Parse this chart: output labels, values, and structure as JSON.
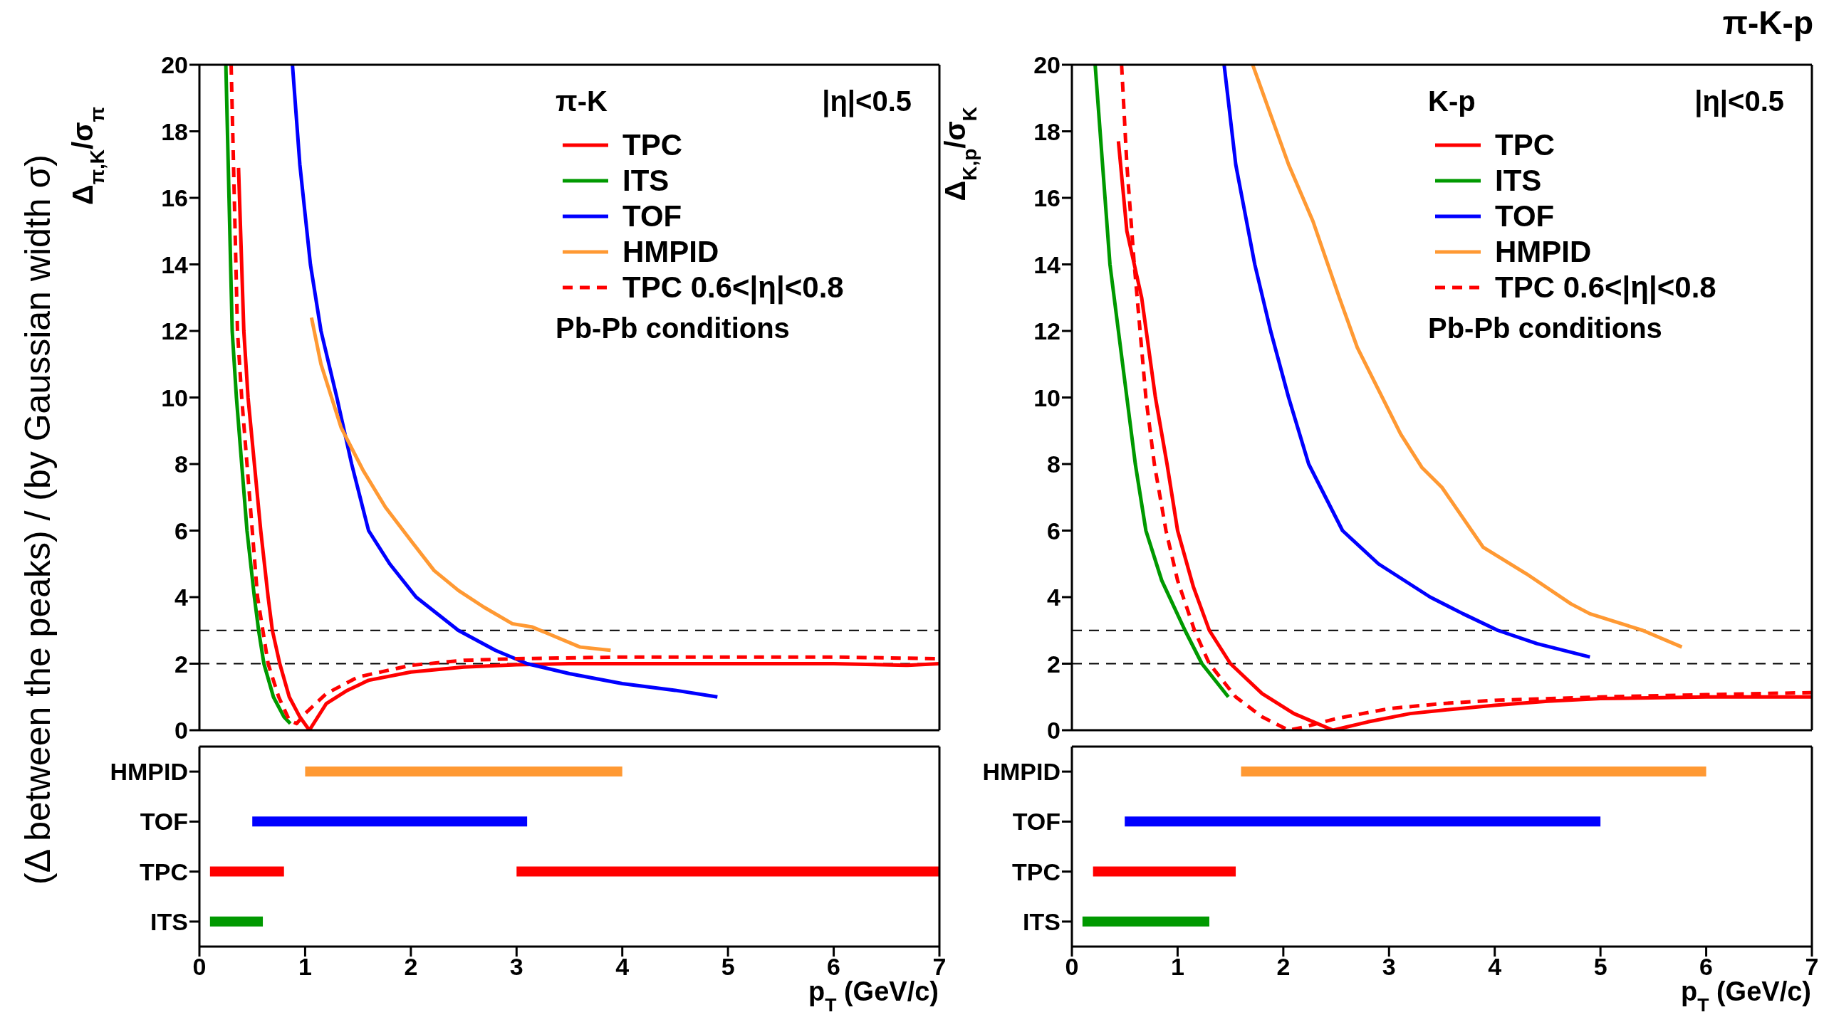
{
  "chart_data": [
    {
      "type": "line",
      "ylabel": "Δ$_{π,K}$/σ$_{π}$",
      "xlim": [
        0,
        7
      ],
      "xticks": [
        0,
        1,
        2,
        3,
        4,
        5,
        6,
        7
      ],
      "ylim": [
        0,
        20
      ],
      "yticks": [
        0,
        2,
        4,
        6,
        8,
        10,
        12,
        14,
        16,
        18,
        20
      ],
      "tick_labels": "y",
      "grid": false,
      "legend": "top right",
      "marker": "none",
      "annotations": [
        "π-K",
        "|η|<0.5",
        "Pb-Pb conditions"
      ],
      "ref_lines": [
        {
          "axis": "y",
          "value": 3,
          "color": "#000000",
          "line_style": "dashed"
        },
        {
          "axis": "y",
          "value": 2,
          "color": "#000000",
          "line_style": "dashed"
        }
      ],
      "series": [
        {
          "name": "TPC",
          "color": "#ff0000",
          "line_style": "solid",
          "x": [
            0.37,
            0.42,
            0.46,
            0.52,
            0.58,
            0.65,
            0.69,
            0.76,
            0.85,
            0.95,
            1.04,
            1.1,
            1.2,
            1.4,
            1.6,
            2,
            2.5,
            3,
            3.5,
            4,
            5,
            6,
            6.7,
            7
          ],
          "values": [
            16.9,
            12,
            10,
            8,
            6,
            4,
            3,
            2,
            1,
            0.4,
            0,
            0.3,
            0.8,
            1.2,
            1.5,
            1.75,
            1.9,
            1.97,
            2,
            2,
            2,
            2,
            1.95,
            2
          ]
        },
        {
          "name": "ITS",
          "color": "#009900",
          "line_style": "solid",
          "x": [
            0.25,
            0.28,
            0.31,
            0.35,
            0.4,
            0.45,
            0.52,
            0.56,
            0.61,
            0.7,
            0.8,
            0.86
          ],
          "values": [
            20,
            16,
            12,
            10,
            8,
            6,
            4,
            3,
            2,
            1,
            0.4,
            0.2
          ]
        },
        {
          "name": "TOF",
          "color": "#0000ff",
          "line_style": "solid",
          "x": [
            0.88,
            0.95,
            1.05,
            1.15,
            1.3,
            1.44,
            1.6,
            1.8,
            2.05,
            2.45,
            2.8,
            3.1,
            3.5,
            4,
            4.5,
            4.9
          ],
          "values": [
            20,
            17,
            14,
            12,
            10,
            8,
            6,
            5,
            4,
            3,
            2.4,
            2,
            1.7,
            1.4,
            1.2,
            1
          ]
        },
        {
          "name": "HMPID",
          "color": "#ff9933",
          "line_style": "solid",
          "x": [
            1.06,
            1.15,
            1.34,
            1.55,
            1.76,
            2,
            2.22,
            2.45,
            2.69,
            2.96,
            3.15,
            3.6,
            3.89
          ],
          "values": [
            12.4,
            11,
            9.1,
            7.8,
            6.7,
            5.7,
            4.8,
            4.2,
            3.7,
            3.2,
            3.1,
            2.5,
            2.4
          ]
        },
        {
          "name": "TPC 0.6<|η|<0.8",
          "color": "#ff0000",
          "line_style": "dashed",
          "x": [
            0.3,
            0.33,
            0.36,
            0.4,
            0.45,
            0.5,
            0.55,
            0.6,
            0.65,
            0.75,
            0.85,
            0.92,
            1,
            1.2,
            1.5,
            2,
            2.5,
            3,
            4,
            5,
            6,
            7
          ],
          "values": [
            20,
            16,
            12,
            10,
            8,
            6,
            4,
            3,
            2,
            1,
            0.3,
            0.2,
            0.5,
            1.1,
            1.6,
            1.95,
            2.1,
            2.15,
            2.2,
            2.2,
            2.2,
            2.15
          ]
        }
      ]
    },
    {
      "type": "line",
      "ylabel": "Δ$_{K,p}$/σ$_{K}$",
      "xlim": [
        0,
        7
      ],
      "xticks": [
        0,
        1,
        2,
        3,
        4,
        5,
        6,
        7
      ],
      "ylim": [
        0,
        20
      ],
      "yticks": [
        0,
        2,
        4,
        6,
        8,
        10,
        12,
        14,
        16,
        18,
        20
      ],
      "tick_labels": "y",
      "grid": false,
      "legend": "top right",
      "marker": "none",
      "annotations": [
        "K-p",
        "|η|<0.5",
        "Pb-Pb conditions"
      ],
      "ref_lines": [
        {
          "axis": "y",
          "value": 3,
          "color": "#000000",
          "line_style": "dashed"
        },
        {
          "axis": "y",
          "value": 2,
          "color": "#000000",
          "line_style": "dashed"
        }
      ],
      "series": [
        {
          "name": "TPC",
          "color": "#ff0000",
          "line_style": "solid",
          "x": [
            0.44,
            0.52,
            0.66,
            0.79,
            0.9,
            1,
            1.15,
            1.3,
            1.5,
            1.8,
            2.1,
            2.47,
            2.8,
            3.2,
            3.5,
            4,
            4.5,
            5,
            6,
            7
          ],
          "values": [
            17.7,
            15,
            13,
            10,
            8,
            6,
            4.3,
            3,
            2,
            1.1,
            0.5,
            0,
            0.25,
            0.5,
            0.6,
            0.75,
            0.87,
            0.95,
            1,
            1
          ]
        },
        {
          "name": "ITS",
          "color": "#009900",
          "line_style": "solid",
          "x": [
            0.22,
            0.29,
            0.36,
            0.44,
            0.52,
            0.6,
            0.7,
            0.85,
            1.07,
            1.23,
            1.48
          ],
          "values": [
            20,
            17,
            14,
            12,
            10,
            8,
            6,
            4.5,
            3,
            2,
            1
          ]
        },
        {
          "name": "TOF",
          "color": "#0000ff",
          "line_style": "solid",
          "x": [
            1.44,
            1.55,
            1.73,
            1.88,
            2.05,
            2.24,
            2.56,
            2.9,
            3.39,
            3.7,
            4.03,
            4.4,
            4.9
          ],
          "values": [
            20,
            17,
            14,
            12,
            10,
            8,
            6,
            5,
            4,
            3.5,
            3,
            2.6,
            2.2
          ]
        },
        {
          "name": "HMPID",
          "color": "#ff9933",
          "line_style": "solid",
          "x": [
            1.71,
            2.05,
            2.28,
            2.53,
            2.7,
            3.11,
            3.31,
            3.5,
            3.89,
            4.3,
            4.72,
            4.9,
            5.4,
            5.77
          ],
          "values": [
            20,
            17,
            15.3,
            13,
            11.5,
            8.9,
            7.9,
            7.3,
            5.5,
            4.7,
            3.8,
            3.5,
            3,
            2.5
          ]
        },
        {
          "name": "TPC 0.6<|η|<0.8",
          "color": "#ff0000",
          "line_style": "dashed",
          "x": [
            0.47,
            0.52,
            0.59,
            0.7,
            0.78,
            0.89,
            1,
            1.16,
            1.3,
            1.55,
            1.8,
            2.05,
            2.2,
            2.5,
            3,
            3.5,
            4,
            5,
            6,
            7
          ],
          "values": [
            20,
            17,
            14,
            10,
            8,
            6,
            4.5,
            3,
            2,
            1,
            0.4,
            0,
            0.1,
            0.35,
            0.65,
            0.8,
            0.9,
            1,
            1.07,
            1.13
          ]
        }
      ]
    },
    {
      "type": "bar",
      "orientation": "horizontal",
      "categories": [
        "HMPID",
        "TOF",
        "TPC",
        "ITS"
      ],
      "xlabel": "p$_{T}$ (GeV/c)",
      "xlim": [
        0,
        7
      ],
      "xticks": [
        0,
        1,
        2,
        3,
        4,
        5,
        6,
        7
      ],
      "annotations": [
        "(Δ between the peaks) / (by Gaussian width σ)"
      ],
      "series": [
        {
          "colors": [
            "#ff9933",
            "#0000ff",
            "#ff0000",
            "#009900"
          ],
          "base": [
            1,
            0.5,
            0.1,
            0.1
          ],
          "values": [
            3,
            2.6,
            0.7,
            0.5
          ]
        },
        {
          "colors": [
            null,
            null,
            "#ff0000",
            null
          ],
          "base": [
            null,
            null,
            3,
            null
          ],
          "values": [
            null,
            null,
            4,
            null
          ]
        }
      ]
    },
    {
      "type": "bar",
      "orientation": "horizontal",
      "categories": [
        "HMPID",
        "TOF",
        "TPC",
        "ITS"
      ],
      "xlabel": "p$_{T}$ (GeV/c)",
      "xlim": [
        0,
        7
      ],
      "xticks": [
        0,
        1,
        2,
        3,
        4,
        5,
        6,
        7
      ],
      "annotations": [
        "π-K-p"
      ],
      "series": [
        {
          "colors": [
            "#ff9933",
            "#0000ff",
            "#ff0000",
            "#009900"
          ],
          "base": [
            1.6,
            0.5,
            0.2,
            0.1
          ],
          "values": [
            4.4,
            4.5,
            1.35,
            1.2
          ]
        }
      ]
    }
  ]
}
